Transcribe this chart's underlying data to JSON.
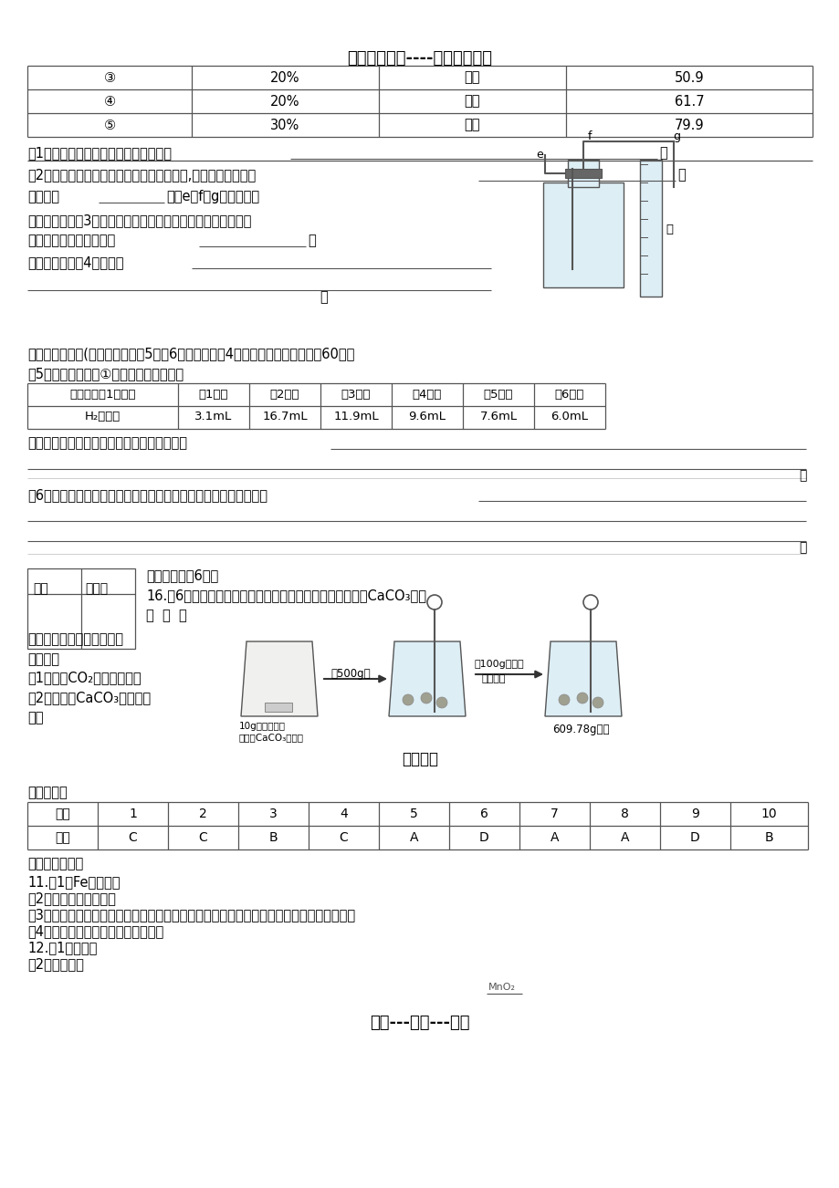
{
  "title": "精选优质文档----倾情为你奉上",
  "footer": "专心---专注---专业",
  "bg_color": "#ffffff",
  "text_color": "#000000",
  "top_table_rows": [
    [
      "③",
      "20%",
      "锥片",
      "50.9"
    ],
    [
      "④",
      "20%",
      "锥粒",
      "61.7"
    ],
    [
      "⑤",
      "30%",
      "锥片",
      "79.9"
    ]
  ],
  "mid_table_headers": [
    "时段（均为1分钟）",
    "第1分钟",
    "第2分钟",
    "第3分钟",
    "第4分钟",
    "第5分钟",
    "第6分钟"
  ],
  "mid_table_row": [
    "H₂的体积",
    "3.1mL",
    "16.7mL",
    "11.9mL",
    "9.6mL",
    "7.6mL",
    "6.0mL"
  ],
  "answer_headers": [
    "题号",
    "1",
    "2",
    "3",
    "4",
    "5",
    "6",
    "7",
    "8",
    "9",
    "10"
  ],
  "answer_row": [
    "答案",
    "C",
    "C",
    "B",
    "C",
    "A",
    "D",
    "A",
    "A",
    "D",
    "B"
  ]
}
